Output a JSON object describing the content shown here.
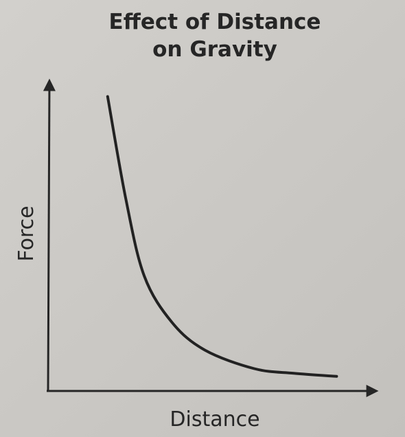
{
  "chart_data": {
    "type": "line",
    "title": "Effect of Distance\non Gravity",
    "x_label": "Distance",
    "y_label": "Force",
    "x": [
      1.85,
      2.4,
      2.96,
      3.8,
      4.8,
      6.3,
      7.5,
      8.8
    ],
    "series": [
      {
        "color": "#222222",
        "values": [
          9.5,
          6.2,
          3.7,
          2.2,
          1.3,
          0.7,
          0.55,
          0.45
        ]
      }
    ],
    "xlim": [
      0,
      10
    ],
    "ylim": [
      0,
      10
    ],
    "grid": false
  }
}
